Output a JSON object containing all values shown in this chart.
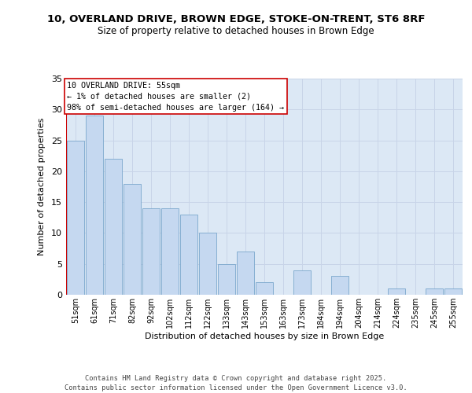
{
  "title": "10, OVERLAND DRIVE, BROWN EDGE, STOKE-ON-TRENT, ST6 8RF",
  "subtitle": "Size of property relative to detached houses in Brown Edge",
  "xlabel": "Distribution of detached houses by size in Brown Edge",
  "ylabel": "Number of detached properties",
  "categories": [
    "51sqm",
    "61sqm",
    "71sqm",
    "82sqm",
    "92sqm",
    "102sqm",
    "112sqm",
    "122sqm",
    "133sqm",
    "143sqm",
    "153sqm",
    "163sqm",
    "173sqm",
    "184sqm",
    "194sqm",
    "204sqm",
    "214sqm",
    "224sqm",
    "235sqm",
    "245sqm",
    "255sqm"
  ],
  "values": [
    25,
    29,
    22,
    18,
    14,
    14,
    13,
    10,
    5,
    7,
    2,
    0,
    4,
    0,
    3,
    0,
    0,
    1,
    0,
    1,
    1
  ],
  "bar_color": "#c5d8f0",
  "bar_edge_color": "#7ba7cc",
  "annotation_text": "10 OVERLAND DRIVE: 55sqm\n← 1% of detached houses are smaller (2)\n98% of semi-detached houses are larger (164) →",
  "annotation_box_color": "#ffffff",
  "annotation_box_edge_color": "#cc0000",
  "vline_color": "#cc0000",
  "ylim": [
    0,
    35
  ],
  "yticks": [
    0,
    5,
    10,
    15,
    20,
    25,
    30,
    35
  ],
  "grid_color": "#c8d4e8",
  "background_color": "#dce8f5",
  "footer_text": "Contains HM Land Registry data © Crown copyright and database right 2025.\nContains public sector information licensed under the Open Government Licence v3.0.",
  "title_fontsize": 9.5,
  "subtitle_fontsize": 8.5
}
